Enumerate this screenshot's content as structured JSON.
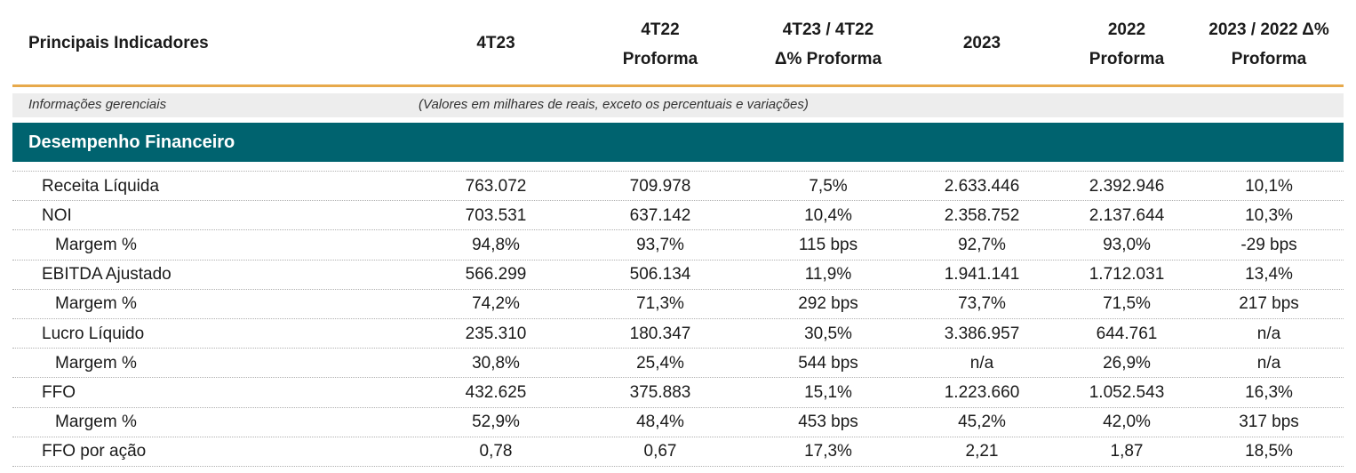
{
  "table": {
    "columns": [
      [
        "Principais Indicadores"
      ],
      [
        "4T23"
      ],
      [
        "4T22",
        "Proforma"
      ],
      [
        "4T23 / 4T22",
        "Δ% Proforma"
      ],
      [
        "2023"
      ],
      [
        "2022",
        "Proforma"
      ],
      [
        "2023 / 2022 Δ%",
        "Proforma"
      ]
    ],
    "note_left": "Informações gerenciais",
    "note_right": "(Valores em milhares de reais, exceto os percentuais e variações)",
    "section": "Desempenho Financeiro",
    "rows": [
      [
        "Receita Líquida",
        "763.072",
        "709.978",
        "7,5%",
        "2.633.446",
        "2.392.946",
        "10,1%"
      ],
      [
        "NOI",
        "703.531",
        "637.142",
        "10,4%",
        "2.358.752",
        "2.137.644",
        "10,3%"
      ],
      [
        "Margem %",
        "94,8%",
        "93,7%",
        "115 bps",
        "92,7%",
        "93,0%",
        "-29 bps"
      ],
      [
        "EBITDA Ajustado",
        "566.299",
        "506.134",
        "11,9%",
        "1.941.141",
        "1.712.031",
        "13,4%"
      ],
      [
        "Margem %",
        "74,2%",
        "71,3%",
        "292 bps",
        "73,7%",
        "71,5%",
        "217 bps"
      ],
      [
        "Lucro Líquido",
        "235.310",
        "180.347",
        "30,5%",
        "3.386.957",
        "644.761",
        "n/a"
      ],
      [
        "Margem %",
        "30,8%",
        "25,4%",
        "544 bps",
        "n/a",
        "26,9%",
        "n/a"
      ],
      [
        "FFO",
        "432.625",
        "375.883",
        "15,1%",
        "1.223.660",
        "1.052.543",
        "16,3%"
      ],
      [
        "Margem %",
        "52,9%",
        "48,4%",
        "453 bps",
        "45,2%",
        "42,0%",
        "317 bps"
      ],
      [
        "FFO por ação",
        "0,78",
        "0,67",
        "17,3%",
        "2,21",
        "1,87",
        "18,5%"
      ]
    ]
  }
}
